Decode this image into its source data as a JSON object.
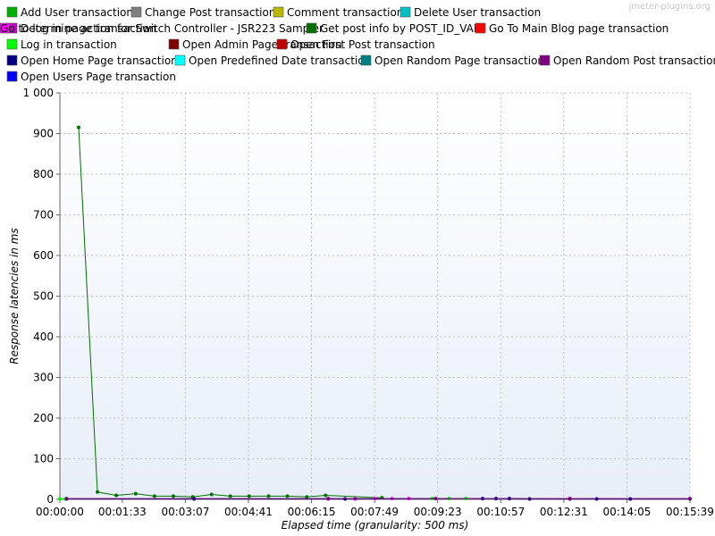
{
  "watermark": "jmeter-plugins.org",
  "chart_data": {
    "type": "line",
    "xlabel": "Elapsed time (granularity: 500 ms)",
    "ylabel": "Response latencies in ms",
    "ylim": [
      0,
      1000
    ],
    "yticks": [
      0,
      100,
      200,
      300,
      400,
      500,
      600,
      700,
      800,
      900,
      1000
    ],
    "ytick_labels": [
      "0",
      "100",
      "200",
      "300",
      "400",
      "500",
      "600",
      "700",
      "800",
      "900",
      "1 000"
    ],
    "xlim_seconds": [
      0,
      939
    ],
    "xticks_seconds": [
      0,
      93,
      187,
      281,
      375,
      469,
      563,
      657,
      751,
      845,
      939
    ],
    "xtick_labels": [
      "00:00:00",
      "00:01:33",
      "00:03:07",
      "00:04:41",
      "00:06:15",
      "00:07:49",
      "00:09:23",
      "00:10:57",
      "00:12:31",
      "00:14:05",
      "00:15:39"
    ],
    "grid": true,
    "legend_position": "top",
    "plot_background": [
      "#ffffff",
      "#e8eef7"
    ],
    "series": [
      {
        "name": "Add User transaction",
        "color": "#00b000",
        "x": [],
        "y": []
      },
      {
        "name": "Change Post transaction",
        "color": "#808080",
        "x": [],
        "y": []
      },
      {
        "name": "Comment transaction",
        "color": "#b8b800",
        "x": [],
        "y": []
      },
      {
        "name": "Delete User transaction",
        "color": "#00c0c0",
        "x": [],
        "y": []
      },
      {
        "name": "Determine action for Switch Controller - JSR223 Sampler",
        "color": "#c000c0",
        "x": [
          0,
          400,
          440
        ],
        "y": [
          1,
          1,
          1
        ]
      },
      {
        "name": "Get post info by POST_ID_VAL",
        "color": "#007000",
        "x": [
          28,
          56,
          84,
          113,
          141,
          169,
          198,
          226,
          254,
          282,
          311,
          339,
          368,
          396,
          480
        ],
        "y": [
          915,
          18,
          10,
          14,
          8,
          8,
          6,
          12,
          8,
          8,
          8,
          8,
          6,
          10,
          4
        ]
      },
      {
        "name": "Go To Main Blog page transaction",
        "color": "#ff0000",
        "x": [],
        "y": []
      },
      {
        "name": "Go to log in page transaction",
        "color": "#ff00ff",
        "x": [
          470,
          495,
          520
        ],
        "y": [
          2,
          2,
          2
        ]
      },
      {
        "name": "Log in transaction",
        "color": "#00ff00",
        "x": [
          0,
          8,
          555,
          580,
          605
        ],
        "y": [
          1,
          1,
          2,
          2,
          2
        ]
      },
      {
        "name": "Open Admin Page transaction",
        "color": "#800000",
        "x": [],
        "y": []
      },
      {
        "name": "Open First Post transaction",
        "color": "#c00000",
        "x": [],
        "y": []
      },
      {
        "name": "Open Home Page transaction",
        "color": "#000080",
        "x": [
          10,
          200,
          425,
          630,
          650,
          670,
          700,
          760,
          800,
          850,
          939
        ],
        "y": [
          1,
          1,
          1,
          2,
          2,
          2,
          1,
          1,
          1,
          1,
          1
        ]
      },
      {
        "name": "Open Predefined Date transaction",
        "color": "#00ffff",
        "x": [],
        "y": []
      },
      {
        "name": "Open Random Page transaction",
        "color": "#008080",
        "x": [],
        "y": []
      },
      {
        "name": "Open Random Post transaction",
        "color": "#800080",
        "x": [
          10,
          400,
          560,
          760,
          939
        ],
        "y": [
          2,
          2,
          2,
          2,
          2
        ]
      },
      {
        "name": "Open Users Page transaction",
        "color": "#0000ff",
        "x": [],
        "y": []
      }
    ]
  }
}
